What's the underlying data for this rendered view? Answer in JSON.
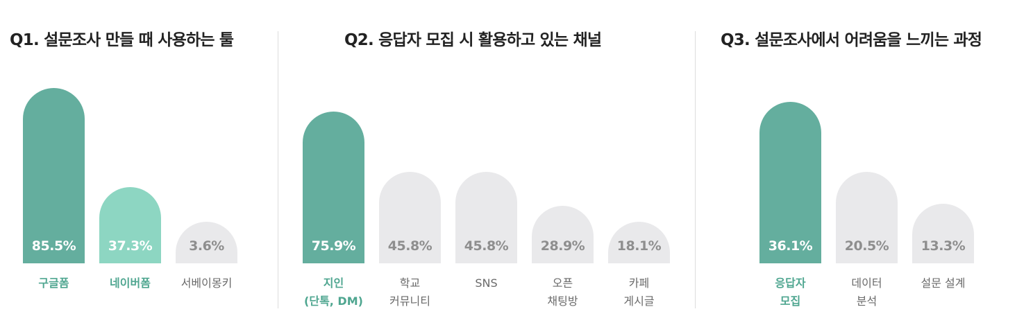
{
  "chart_data": [
    {
      "type": "bar",
      "title": "Q1. 설문조사 만들 때 사용하는 툴",
      "categories": [
        [
          "구글폼"
        ],
        [
          "네이버폼"
        ],
        [
          "서베이몽키"
        ]
      ],
      "values": [
        85.5,
        37.3,
        3.6
      ],
      "value_labels": [
        "85.5%",
        "37.3%",
        "3.6%"
      ],
      "colors": [
        "#64ae9e",
        "#8dd6c2",
        "#e9e9eb"
      ],
      "highlight_labels": [
        true,
        true,
        false
      ],
      "ylim": [
        0,
        100
      ]
    },
    {
      "type": "bar",
      "title": "Q2. 응답자 모집 시 활용하고 있는 채널",
      "categories": [
        [
          "지인",
          "(단톡, DM)"
        ],
        [
          "학교",
          "커뮤니티"
        ],
        [
          "SNS"
        ],
        [
          "오픈",
          "채팅방"
        ],
        [
          "카페",
          "게시글"
        ]
      ],
      "values": [
        75.9,
        45.8,
        45.8,
        28.9,
        18.1
      ],
      "value_labels": [
        "75.9%",
        "45.8%",
        "45.8%",
        "28.9%",
        "18.1%"
      ],
      "colors": [
        "#64ae9e",
        "#e9e9eb",
        "#e9e9eb",
        "#e9e9eb",
        "#e9e9eb"
      ],
      "highlight_labels": [
        true,
        false,
        false,
        false,
        false
      ],
      "ylim": [
        0,
        100
      ]
    },
    {
      "type": "bar",
      "title": "Q3. 설문조사에서 어려움을 느끼는 과정",
      "categories": [
        [
          "응답자",
          "모집"
        ],
        [
          "데이터",
          "분석"
        ],
        [
          "설문 설계"
        ]
      ],
      "values": [
        36.1,
        20.5,
        13.3
      ],
      "value_labels": [
        "36.1%",
        "20.5%",
        "13.3%"
      ],
      "colors": [
        "#64ae9e",
        "#e9e9eb",
        "#e9e9eb"
      ],
      "highlight_labels": [
        true,
        false,
        false
      ],
      "ylim": [
        0,
        45
      ]
    }
  ]
}
